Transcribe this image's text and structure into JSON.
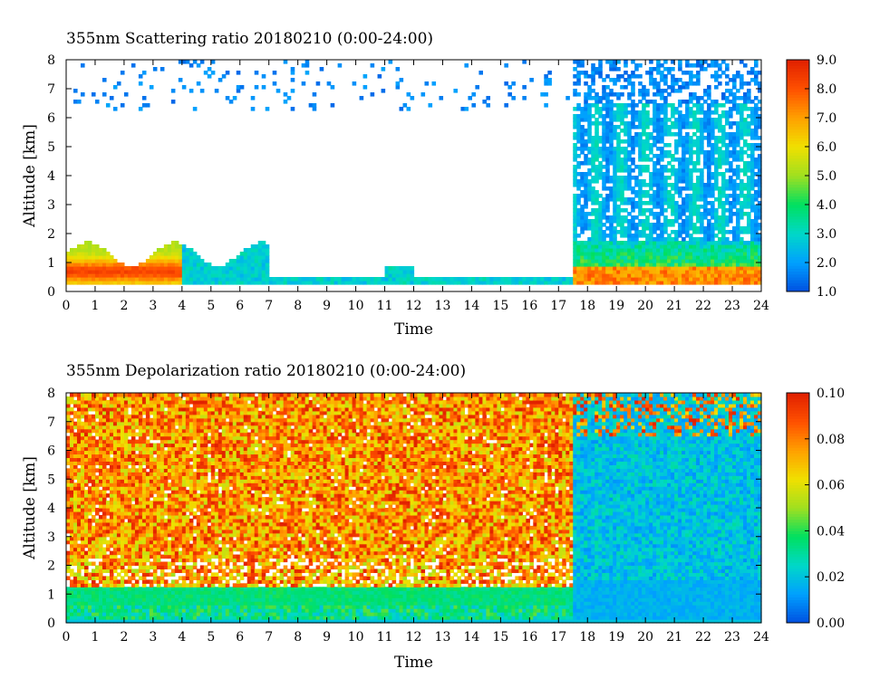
{
  "chart_data": [
    {
      "type": "heatmap",
      "title": "355nm Scattering ratio  20180210 (0:00-24:00)",
      "xlabel": "Time",
      "ylabel": "Altitude [km]",
      "xlim": [
        0,
        24
      ],
      "ylim": [
        0,
        8
      ],
      "x_ticks": [
        "0",
        "1",
        "2",
        "3",
        "4",
        "5",
        "6",
        "7",
        "8",
        "9",
        "10",
        "11",
        "12",
        "13",
        "14",
        "15",
        "16",
        "17",
        "18",
        "19",
        "20",
        "21",
        "22",
        "23",
        "24"
      ],
      "y_ticks": [
        "0",
        "1",
        "2",
        "3",
        "4",
        "5",
        "6",
        "7",
        "8"
      ],
      "colorbar": {
        "min": 1.0,
        "max": 9.0,
        "tick_labels": [
          "1.0",
          "2.0",
          "3.0",
          "4.0",
          "5.0",
          "6.0",
          "7.0",
          "8.0",
          "9.0"
        ]
      },
      "colors": [
        "#0050e0",
        "#00a0ff",
        "#00d8c8",
        "#00e060",
        "#a0e020",
        "#f0e000",
        "#ffa000",
        "#ff5000",
        "#e02000"
      ]
    },
    {
      "type": "heatmap",
      "title": "355nm Depolarization ratio  20180210 (0:00-24:00)",
      "xlabel": "Time",
      "ylabel": "Altitude [km]",
      "xlim": [
        0,
        24
      ],
      "ylim": [
        0,
        8
      ],
      "x_ticks": [
        "0",
        "1",
        "2",
        "3",
        "4",
        "5",
        "6",
        "7",
        "8",
        "9",
        "10",
        "11",
        "12",
        "13",
        "14",
        "15",
        "16",
        "17",
        "18",
        "19",
        "20",
        "21",
        "22",
        "23",
        "24"
      ],
      "y_ticks": [
        "0",
        "1",
        "2",
        "3",
        "4",
        "5",
        "6",
        "7",
        "8"
      ],
      "colorbar": {
        "min": 0.0,
        "max": 0.1,
        "tick_labels": [
          "0.00",
          "0.02",
          "0.04",
          "0.06",
          "0.08",
          "0.10"
        ]
      },
      "colors": [
        "#0050e0",
        "#00a0ff",
        "#00d8c8",
        "#00e060",
        "#a0e020",
        "#f0e000",
        "#ffa000",
        "#ff5000",
        "#e02000"
      ]
    }
  ]
}
